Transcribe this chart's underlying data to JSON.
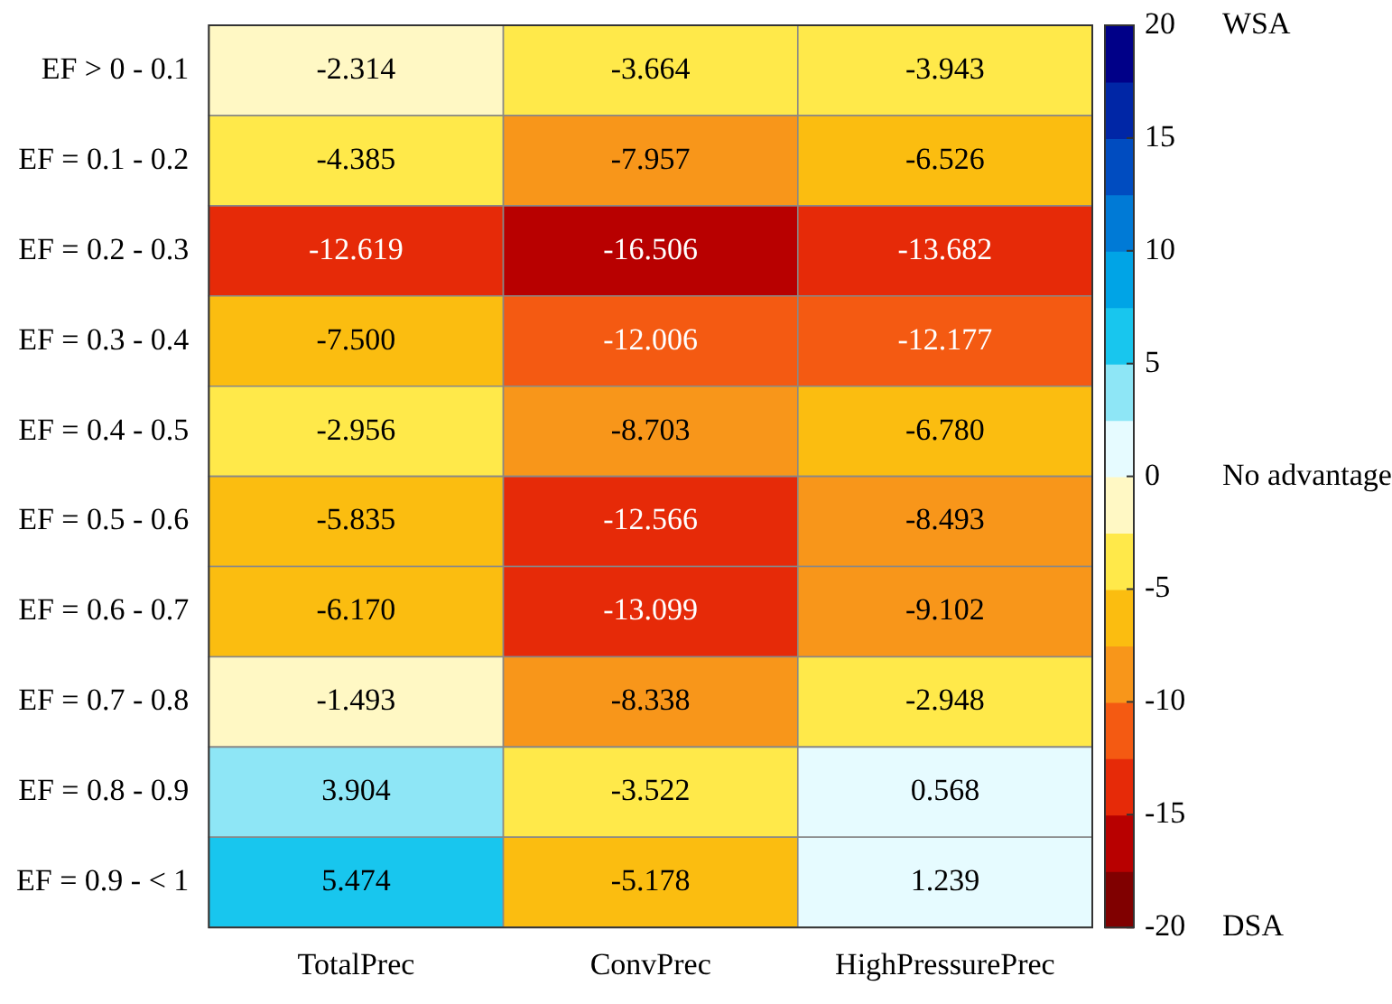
{
  "chart_data": {
    "type": "heatmap",
    "categories": [
      "TotalPrec",
      "ConvPrec",
      "HighPressurePrec"
    ],
    "y_categories": [
      "EF > 0 - 0.1",
      "EF = 0.1 - 0.2",
      "EF = 0.2 - 0.3",
      "EF = 0.3 - 0.4",
      "EF = 0.4 - 0.5",
      "EF = 0.5 - 0.6",
      "EF = 0.6 - 0.7",
      "EF = 0.7 - 0.8",
      "EF = 0.8 - 0.9",
      "EF = 0.9 - < 1"
    ],
    "cells": [
      [
        -2.314,
        -3.664,
        -3.943
      ],
      [
        -4.385,
        -7.957,
        -6.526
      ],
      [
        -12.619,
        -16.506,
        -13.682
      ],
      [
        -7.5,
        -12.006,
        -12.177
      ],
      [
        -2.956,
        -8.703,
        -6.78
      ],
      [
        -5.835,
        -12.566,
        -8.493
      ],
      [
        -6.17,
        -13.099,
        -9.102
      ],
      [
        -1.493,
        -8.338,
        -2.948
      ],
      [
        3.904,
        -3.522,
        0.568
      ],
      [
        5.474,
        -5.178,
        1.239
      ]
    ],
    "data_labels": true,
    "cell_labels": [
      [
        "-2.314",
        "-3.664",
        "-3.943"
      ],
      [
        "-4.385",
        "-7.957",
        "-6.526"
      ],
      [
        "-12.619",
        "-16.506",
        "-13.682"
      ],
      [
        "-7.500",
        "-12.006",
        "-12.177"
      ],
      [
        "-2.956",
        "-8.703",
        "-6.780"
      ],
      [
        "-5.835",
        "-12.566",
        "-8.493"
      ],
      [
        "-6.170",
        "-13.099",
        "-9.102"
      ],
      [
        "-1.493",
        "-8.338",
        "-2.948"
      ],
      [
        "3.904",
        "-3.522",
        "0.568"
      ],
      [
        "5.474",
        "-5.178",
        "1.239"
      ]
    ],
    "clim": [
      -20,
      20
    ],
    "cticks": [
      -20,
      -15,
      -10,
      -5,
      0,
      5,
      10,
      15,
      20
    ],
    "annotations": [
      "WSA",
      "No advantage",
      "DSA"
    ]
  }
}
